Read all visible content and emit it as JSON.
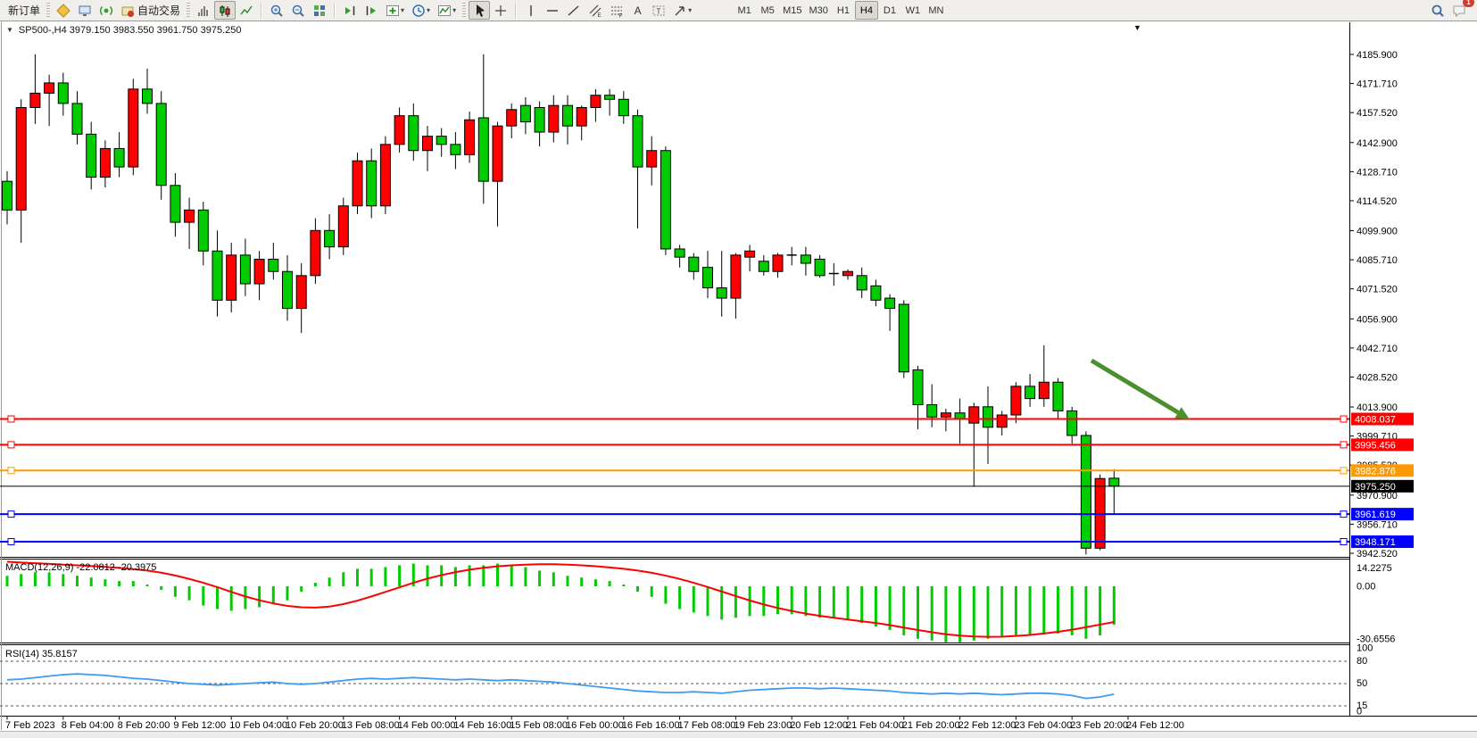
{
  "toolbar": {
    "new_order_label": "新订单",
    "autotrading_label": "自动交易",
    "text_tool_label": "A",
    "timeframes": [
      "M1",
      "M5",
      "M15",
      "M30",
      "H1",
      "H4",
      "D1",
      "W1",
      "MN"
    ],
    "active_timeframe": "H4",
    "notification_count": "1"
  },
  "chart": {
    "title": "SP500-,H4  3979.150 3983.550 3961.750 3975.250",
    "collapse_marker": "▼"
  },
  "chart_data": {
    "type": "candlestick",
    "symbol": "SP500-",
    "timeframe": "H4",
    "ohlc_display": {
      "open": "3979.150",
      "high": "3983.550",
      "low": "3961.750",
      "close": "3975.250"
    },
    "price_axis_ticks": [
      "4185.900",
      "4171.710",
      "4157.520",
      "4142.900",
      "4128.710",
      "4114.520",
      "4099.900",
      "4085.710",
      "4071.520",
      "4056.900",
      "4042.710",
      "4028.520",
      "4013.900",
      "3999.710",
      "3985.520",
      "3970.900",
      "3956.710",
      "3942.520"
    ],
    "time_axis": [
      "7 Feb 2023",
      "8 Feb 04:00",
      "8 Feb 20:00",
      "9 Feb 12:00",
      "10 Feb 04:00",
      "10 Feb 20:00",
      "13 Feb 08:00",
      "14 Feb 00:00",
      "14 Feb 16:00",
      "15 Feb 08:00",
      "16 Feb 00:00",
      "16 Feb 16:00",
      "17 Feb 08:00",
      "19 Feb 23:00",
      "20 Feb 12:00",
      "21 Feb 04:00",
      "21 Feb 20:00",
      "22 Feb 12:00",
      "23 Feb 04:00",
      "23 Feb 20:00",
      "24 Feb 12:00"
    ],
    "candles": [
      [
        4124,
        4129,
        4103,
        4110
      ],
      [
        4110,
        4164,
        4094,
        4160
      ],
      [
        4160,
        4186,
        4152,
        4167
      ],
      [
        4167,
        4176,
        4151,
        4172
      ],
      [
        4172,
        4177,
        4156,
        4162
      ],
      [
        4162,
        4168,
        4142,
        4147
      ],
      [
        4147,
        4153,
        4120,
        4126
      ],
      [
        4126,
        4144,
        4121,
        4140
      ],
      [
        4140,
        4148,
        4126,
        4131
      ],
      [
        4131,
        4174,
        4127,
        4169
      ],
      [
        4169,
        4179,
        4157,
        4162
      ],
      [
        4162,
        4168,
        4115,
        4122
      ],
      [
        4122,
        4128,
        4097,
        4104
      ],
      [
        4104,
        4116,
        4091,
        4110
      ],
      [
        4110,
        4114,
        4083,
        4090
      ],
      [
        4090,
        4100,
        4058,
        4066
      ],
      [
        4066,
        4094,
        4060,
        4088
      ],
      [
        4088,
        4096,
        4068,
        4074
      ],
      [
        4074,
        4090,
        4066,
        4086
      ],
      [
        4086,
        4094,
        4076,
        4080
      ],
      [
        4080,
        4088,
        4056,
        4062
      ],
      [
        4062,
        4084,
        4050,
        4078
      ],
      [
        4078,
        4106,
        4074,
        4100
      ],
      [
        4100,
        4108,
        4086,
        4092
      ],
      [
        4092,
        4116,
        4088,
        4112
      ],
      [
        4112,
        4138,
        4108,
        4134
      ],
      [
        4134,
        4140,
        4106,
        4112
      ],
      [
        4112,
        4146,
        4108,
        4142
      ],
      [
        4142,
        4160,
        4138,
        4156
      ],
      [
        4156,
        4162,
        4134,
        4139
      ],
      [
        4139,
        4151,
        4129,
        4146
      ],
      [
        4146,
        4150,
        4136,
        4142
      ],
      [
        4142,
        4148,
        4130,
        4137
      ],
      [
        4137,
        4158,
        4133,
        4154
      ],
      [
        4155,
        4186,
        4113,
        4124
      ],
      [
        4124,
        4153,
        4102,
        4151
      ],
      [
        4151,
        4162,
        4145,
        4159
      ],
      [
        4161,
        4165,
        4147,
        4153
      ],
      [
        4160,
        4163,
        4141,
        4148
      ],
      [
        4148,
        4166,
        4143,
        4161
      ],
      [
        4161,
        4166,
        4142,
        4151
      ],
      [
        4151,
        4161,
        4144,
        4160
      ],
      [
        4160,
        4169,
        4153,
        4166
      ],
      [
        4166,
        4169,
        4156,
        4164
      ],
      [
        4164,
        4168,
        4152,
        4156
      ],
      [
        4156,
        4159,
        4101,
        4131
      ],
      [
        4131,
        4146,
        4122,
        4139
      ],
      [
        4139,
        4141,
        4088,
        4091
      ],
      [
        4091,
        4093,
        4082,
        4087
      ],
      [
        4087,
        4089,
        4076,
        4080
      ],
      [
        4082,
        4090,
        4067,
        4072
      ],
      [
        4072,
        4090,
        4058,
        4067
      ],
      [
        4067,
        4089,
        4057,
        4088
      ],
      [
        4087,
        4093,
        4080,
        4090
      ],
      [
        4085,
        4088,
        4078,
        4080
      ],
      [
        4080,
        4089,
        4077,
        4088
      ],
      [
        4088,
        4092,
        4083,
        4088
      ],
      [
        4088,
        4092,
        4078,
        4084
      ],
      [
        4086,
        4088,
        4077,
        4078
      ],
      [
        4079,
        4084,
        4073,
        4079
      ],
      [
        4078,
        4081,
        4076,
        4080
      ],
      [
        4078,
        4082,
        4067,
        4071
      ],
      [
        4073,
        4076,
        4063,
        4066
      ],
      [
        4067,
        4069,
        4051,
        4062
      ],
      [
        4064,
        4066,
        4028,
        4031
      ],
      [
        4032,
        4034,
        4003,
        4015
      ],
      [
        4015,
        4025,
        4004,
        4009
      ],
      [
        4009,
        4013,
        4002,
        4011
      ],
      [
        4011,
        4018,
        3996,
        4008
      ],
      [
        4006,
        4016,
        3975,
        4014
      ],
      [
        4014,
        4024,
        3986,
        4004
      ],
      [
        4004,
        4012,
        4000,
        4010
      ],
      [
        4010,
        4026,
        4006,
        4024
      ],
      [
        4024,
        4030,
        4014,
        4018
      ],
      [
        4018,
        4044,
        4014,
        4026
      ],
      [
        4026,
        4028,
        4008,
        4012
      ],
      [
        4012,
        4014,
        3996,
        4000
      ],
      [
        4000,
        4002,
        3942,
        3945
      ],
      [
        3945,
        3981,
        3944,
        3979
      ],
      [
        3979.15,
        3983.55,
        3961.75,
        3975.25
      ]
    ],
    "hlines": [
      {
        "price": 4008.037,
        "label": "4008.037",
        "color": "#FF0000",
        "width": 2,
        "handles": true
      },
      {
        "price": 3995.456,
        "label": "3995.456",
        "color": "#FF0000",
        "width": 2,
        "handles": true
      },
      {
        "price": 3982.876,
        "label": "3982.876",
        "color": "#FF9900",
        "width": 2,
        "handles": true
      },
      {
        "price": 3975.25,
        "label": "3975.250",
        "color": "#000000",
        "width": 1,
        "handles": false
      },
      {
        "price": 3961.619,
        "label": "3961.619",
        "color": "#0000FF",
        "width": 2,
        "handles": true
      },
      {
        "price": 3948.171,
        "label": "3948.171",
        "color": "#0000FF",
        "width": 2,
        "handles": true
      }
    ],
    "macd": {
      "label": "MACD(12,26,9)",
      "values": "-22.0812 -20.3975",
      "axis": [
        "14.2275",
        "0.00",
        "-30.6556"
      ],
      "hist": [
        6,
        7,
        8,
        8,
        7,
        6,
        5,
        4,
        3,
        3,
        1,
        -2,
        -6,
        -8,
        -11,
        -13,
        -14,
        -13,
        -12,
        -10,
        -8,
        -3,
        2,
        5,
        8,
        10,
        10,
        11,
        12,
        13,
        12,
        12,
        11,
        12,
        12,
        13,
        12,
        11,
        9,
        8,
        6,
        5,
        4,
        3,
        1,
        -3,
        -6,
        -10,
        -13,
        -15,
        -17,
        -19,
        -18,
        -17,
        -17,
        -16,
        -16,
        -17,
        -18,
        -18,
        -19,
        -21,
        -23,
        -25,
        -28,
        -30,
        -31,
        -32,
        -32,
        -31,
        -30,
        -29,
        -28,
        -28,
        -27,
        -27,
        -28,
        -30,
        -28,
        -22
      ],
      "signal": [
        14,
        13.6,
        13.2,
        12.8,
        12.4,
        12,
        11.6,
        11.1,
        10.5,
        9.8,
        9,
        7.8,
        6.2,
        4.2,
        2,
        -0.5,
        -3.2,
        -5.8,
        -8,
        -9.8,
        -11.2,
        -12,
        -12.2,
        -11.6,
        -10.2,
        -8.2,
        -5.8,
        -3.2,
        -0.6,
        2,
        4.4,
        6.4,
        8.1,
        9.5,
        10.6,
        11.4,
        12,
        12.4,
        12.6,
        12.6,
        12.4,
        12,
        11.5,
        10.8,
        10,
        9,
        7.7,
        6.1,
        4.2,
        2,
        -0.4,
        -3,
        -5.6,
        -8.1,
        -10.4,
        -12.4,
        -14.1,
        -15.6,
        -16.9,
        -18,
        -19,
        -20,
        -21,
        -22.2,
        -23.6,
        -25,
        -26.3,
        -27.4,
        -28.2,
        -28.7,
        -28.9,
        -28.8,
        -28.4,
        -27.8,
        -27,
        -26,
        -24.8,
        -23.4,
        -21.9,
        -20.4
      ]
    },
    "rsi": {
      "label": "RSI(14)",
      "value": "35.8157",
      "axis": [
        "100",
        "80",
        "50",
        "15",
        "0"
      ],
      "series": [
        55,
        56,
        58,
        60,
        62,
        63,
        62,
        61,
        59,
        57,
        56,
        54,
        52,
        50,
        49,
        48,
        49,
        50,
        51,
        52,
        50,
        49,
        50,
        52,
        54,
        56,
        57,
        56,
        57,
        58,
        57,
        56,
        55,
        56,
        55,
        54,
        55,
        54,
        53,
        52,
        50,
        48,
        46,
        44,
        42,
        40,
        39,
        38,
        38,
        39,
        38,
        37,
        39,
        41,
        42,
        43,
        44,
        44,
        43,
        44,
        43,
        42,
        41,
        40,
        38,
        37,
        36,
        37,
        36,
        37,
        36,
        35,
        36,
        37,
        37,
        36,
        34,
        30,
        32,
        35.8
      ]
    },
    "annotation_arrow": {
      "from": [
        1223,
        404
      ],
      "to": [
        1333,
        470
      ],
      "color": "#4C8F2F"
    },
    "colors": {
      "up": "#FF0000",
      "down": "#00CC00",
      "wick": "#000000",
      "macd_hist": "#00CC00",
      "macd_signal": "#FF0000",
      "rsi_line": "#3E9BF0"
    }
  }
}
